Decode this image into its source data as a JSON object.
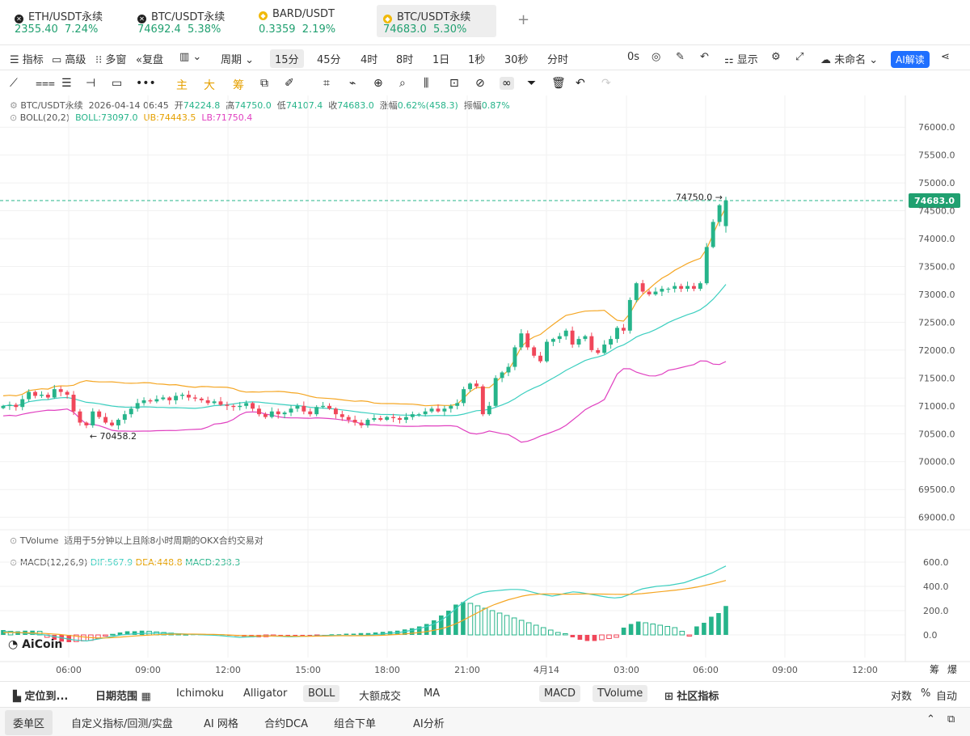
{
  "tickers": [
    {
      "name": "ETH/USDT永续",
      "price": "2355.40",
      "change": "7.24%",
      "icon": "eth-icon"
    },
    {
      "name": "BTC/USDT永续",
      "price": "74692.4",
      "change": "5.38%",
      "icon": "btc-icon"
    },
    {
      "name": "BARD/USDT",
      "price": "0.3359",
      "change": "2.19%",
      "icon": "binance-icon"
    },
    {
      "name": "BTC/USDT永续",
      "price": "74683.0",
      "change": "5.30%",
      "icon": "binance-icon"
    }
  ],
  "toolbar": {
    "indicators": "指标",
    "advanced": "高级",
    "multi": "多窗",
    "replay": "复盘",
    "period": "周期",
    "intervals": [
      "15分",
      "45分",
      "4时",
      "8时",
      "1日",
      "1秒",
      "30秒",
      "分时"
    ],
    "countdown": "0s",
    "display": "显示",
    "unnamed": "未命名",
    "ai": "AI解读"
  },
  "drawtools": [
    "主",
    "大",
    "筹"
  ],
  "legend": {
    "symbol": "BTC/USDT永续",
    "time": "2026-04-14 06:45",
    "open_label": "开",
    "open": "74224.8",
    "high_label": "高",
    "high": "74750.0",
    "low_label": "低",
    "low": "74107.4",
    "close_label": "收",
    "close": "74683.0",
    "chg_label": "涨幅",
    "chg": "0.62%(458.3)",
    "amp_label": "振幅",
    "amp": "0.87%",
    "boll": "BOLL(20,2)",
    "boll_mid": "BOLL:73097.0",
    "boll_ub": "UB:74443.5",
    "boll_lb": "LB:71750.4"
  },
  "tvolume": {
    "name": "TVolume",
    "note": "适用于5分钟以上且除8小时周期的OKX合约交易对"
  },
  "macd": {
    "name": "MACD(12,26,9)",
    "dif": "DIF:567.9",
    "dea": "DEA:448.8",
    "macd": "MACD:238.3"
  },
  "watermark": "AiCoin",
  "colors": {
    "up": "#26b48a",
    "down": "#f0475a",
    "mid": "#f5a623",
    "ub": "#3ccfc0",
    "lb": "#e040c0",
    "price": "#20a070"
  },
  "chart_data": {
    "type": "candlestick",
    "price_axis": {
      "ticks": [
        "76000.0",
        "75500.0",
        "75000.0",
        "74500.0",
        "74000.0",
        "73500.0",
        "73000.0",
        "72500.0",
        "72000.0",
        "71500.0",
        "71000.0",
        "70500.0",
        "70000.0",
        "69500.0",
        "69000.0"
      ],
      "range": [
        68850,
        76250
      ]
    },
    "last_price": "74683.0",
    "high_marker": "74750.0",
    "low_marker": "70458.2",
    "time_axis": [
      "06:00",
      "09:00",
      "12:00",
      "15:00",
      "18:00",
      "21:00",
      "4月14",
      "03:00",
      "06:00",
      "09:00",
      "12:00"
    ],
    "macd_axis": {
      "ticks": [
        "600.0",
        "400.0",
        "200.0",
        "0.0"
      ],
      "range": [
        -120,
        680
      ]
    },
    "closes": [
      71000,
      71020,
      70980,
      71120,
      71250,
      71180,
      71200,
      71150,
      71300,
      71250,
      71200,
      70900,
      70700,
      70650,
      70900,
      70800,
      70700,
      70650,
      70750,
      70850,
      70950,
      71050,
      71100,
      71080,
      71120,
      71150,
      71100,
      71180,
      71200,
      71150,
      71130,
      71100,
      71050,
      71080,
      71020,
      71000,
      70980,
      71000,
      71050,
      70950,
      70850,
      70800,
      70900,
      70850,
      70880,
      70950,
      71000,
      70900,
      70850,
      70980,
      71000,
      70950,
      70850,
      70800,
      70750,
      70700,
      70650,
      70750,
      70780,
      70750,
      70800,
      70780,
      70750,
      70800,
      70850,
      70850,
      70900,
      70950,
      70900,
      70950,
      71000,
      71050,
      71300,
      71400,
      71350,
      70850,
      71000,
      71500,
      71600,
      71700,
      72050,
      72300,
      72050,
      71900,
      71800,
      72150,
      72200,
      72250,
      72350,
      72100,
      72200,
      72250,
      72000,
      71950,
      72100,
      72200,
      72400,
      72350,
      72900,
      73200,
      73050,
      73000,
      73050,
      73100,
      73100,
      73150,
      73100,
      73150,
      73100,
      73200,
      73850,
      74300,
      74600,
      74683
    ],
    "dif": [
      30,
      25,
      20,
      15,
      10,
      5,
      0,
      -10,
      -20,
      -30,
      -40,
      -45,
      -50,
      -40,
      -30,
      -20,
      -10,
      0,
      5,
      10,
      12,
      14,
      15,
      14,
      12,
      10,
      8,
      5,
      3,
      0,
      -2,
      -5,
      -10,
      -15,
      -20,
      -18,
      -15,
      -10,
      -8,
      -10,
      -12,
      -15,
      -14,
      -12,
      -10,
      -8,
      -5,
      -3,
      -5,
      -6,
      -7,
      -5,
      -3,
      0,
      5,
      10,
      15,
      20,
      30,
      40,
      55,
      70,
      90,
      120,
      160,
      210,
      260,
      300,
      330,
      350,
      360,
      365,
      370,
      375,
      375,
      370,
      355,
      340,
      330,
      320,
      330,
      345,
      355,
      350,
      340,
      330,
      320,
      310,
      305,
      310,
      330,
      360,
      380,
      390,
      400,
      405,
      410,
      420,
      430,
      450,
      470,
      490,
      510,
      540,
      567.9
    ],
    "dea": [
      20,
      20,
      19,
      18,
      16,
      14,
      12,
      8,
      4,
      -2,
      -8,
      -14,
      -20,
      -24,
      -25,
      -24,
      -21,
      -17,
      -12,
      -8,
      -4,
      -1,
      2,
      4,
      6,
      7,
      7,
      7,
      6,
      5,
      4,
      2,
      0,
      -3,
      -6,
      -8,
      -9,
      -9,
      -9,
      -9,
      -10,
      -11,
      -11,
      -11,
      -11,
      -10,
      -9,
      -8,
      -7,
      -7,
      -7,
      -7,
      -6,
      -5,
      -3,
      0,
      3,
      7,
      12,
      18,
      25,
      34,
      45,
      60,
      80,
      105,
      135,
      165,
      195,
      225,
      250,
      270,
      290,
      305,
      320,
      330,
      335,
      338,
      338,
      337,
      336,
      336,
      337,
      338,
      338,
      337,
      336,
      335,
      334,
      334,
      336,
      340,
      346,
      352,
      358,
      364,
      370,
      378,
      386,
      396,
      408,
      420,
      434,
      448.8
    ],
    "hist": [
      40,
      30,
      30,
      35,
      35,
      30,
      -20,
      -40,
      -55,
      -60,
      -55,
      -50,
      -45,
      -30,
      -10,
      5,
      20,
      30,
      30,
      35,
      30,
      25,
      20,
      15,
      10,
      5,
      5,
      5,
      5,
      5,
      5,
      -5,
      -10,
      -15,
      -20,
      -20,
      -15,
      -10,
      -10,
      -10,
      -10,
      -10,
      -10,
      -5,
      -5,
      5,
      5,
      10,
      10,
      15,
      15,
      20,
      25,
      30,
      35,
      45,
      55,
      70,
      90,
      120,
      160,
      200,
      250,
      270,
      260,
      240,
      220,
      200,
      180,
      160,
      140,
      120,
      100,
      80,
      60,
      40,
      20,
      10,
      -20,
      -40,
      -50,
      -50,
      -40,
      -30,
      -20,
      60,
      90,
      110,
      100,
      90,
      80,
      70,
      60,
      30,
      -10,
      70,
      100,
      150,
      180,
      238.3
    ],
    "right_axis_labels": [
      "筹",
      "爆"
    ]
  },
  "bottom_bar": {
    "locate": "定位到...",
    "range": "日期范围",
    "items": [
      "Ichimoku",
      "Alligator",
      "BOLL",
      "大额成交",
      "MA"
    ],
    "indicators": [
      "MACD",
      "TVolume"
    ],
    "community": "社区指标",
    "log": "对数",
    "pct": "%",
    "auto": "自动"
  },
  "footer": {
    "tabs": [
      "委单区",
      "自定义指标/回测/实盘",
      "AI 网格",
      "合约DCA",
      "组合下单",
      "AI分析"
    ]
  }
}
